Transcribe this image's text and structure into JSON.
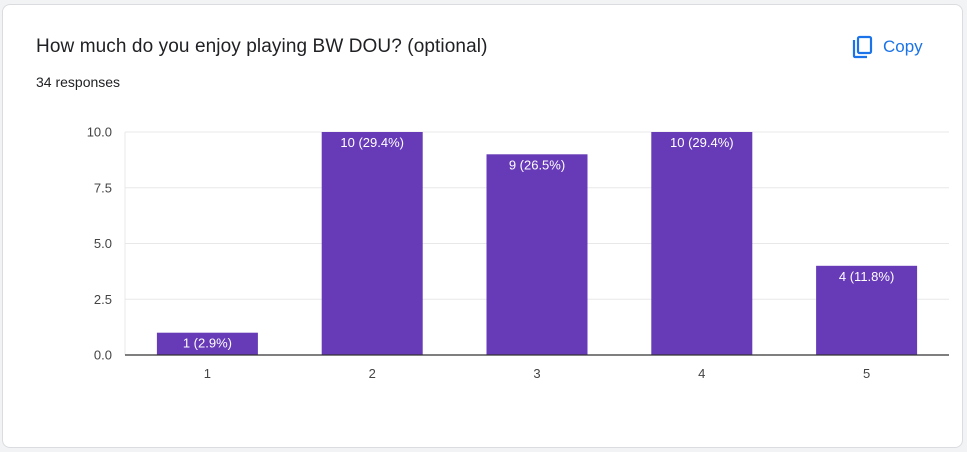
{
  "question": {
    "title": "How much do you enjoy playing BW DOU? (optional)",
    "responses": "34 responses"
  },
  "toolbar": {
    "copy_label": "Copy",
    "copy_icon": "copy-icon"
  },
  "colors": {
    "bar": "#673ab7",
    "accent": "#1a73e8",
    "grid": "#e8e8e8",
    "axis": "#333333"
  },
  "chart_data": {
    "type": "bar",
    "categories": [
      "1",
      "2",
      "3",
      "4",
      "5"
    ],
    "values": [
      1,
      10,
      9,
      10,
      4
    ],
    "data_labels": [
      "1 (2.9%)",
      "10 (29.4%)",
      "9 (26.5%)",
      "10 (29.4%)",
      "4 (11.8%)"
    ],
    "title": "How much do you enjoy playing BW DOU? (optional)",
    "ylim": [
      0,
      10
    ],
    "yticks": [
      "0.0",
      "2.5",
      "5.0",
      "7.5",
      "10.0"
    ],
    "grid": true
  }
}
